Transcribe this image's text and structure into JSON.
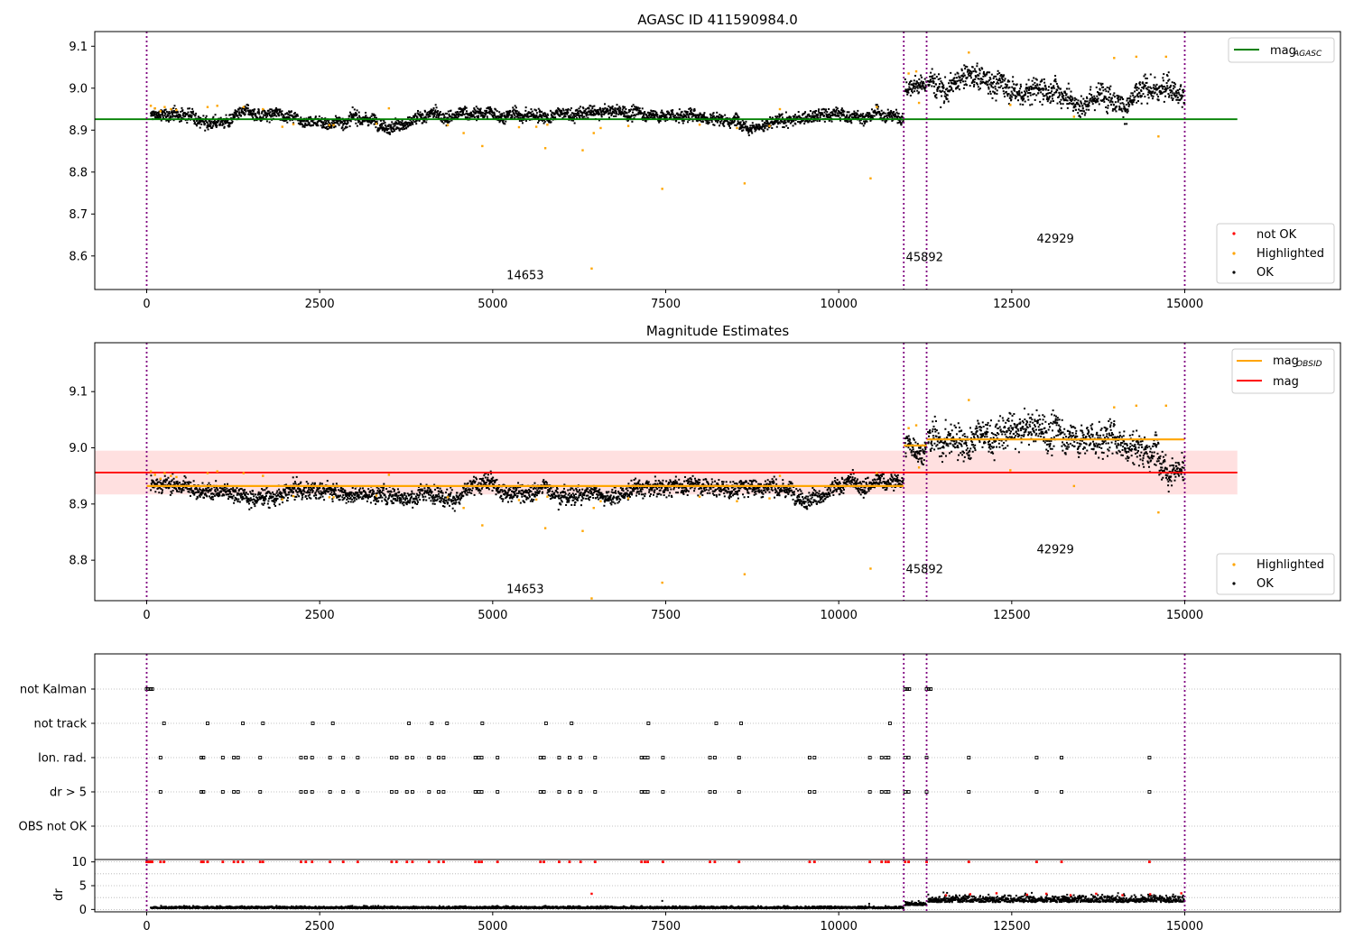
{
  "figure": {
    "title_top": "AGASC ID 411590984.0",
    "title_middle": "Magnitude Estimates"
  },
  "colors": {
    "ok": "#000000",
    "highlighted": "#ffa500",
    "not_ok": "#ff0000",
    "mag_agasc_line": "#008000",
    "mag_obsid_line": "#ffa500",
    "mag_line": "#ff0000",
    "mag_band": "#ffe0e0",
    "obs_boundary": "#800080",
    "grid": "#b0b0b0"
  },
  "chart_data": [
    {
      "id": "agasc_mag",
      "type": "scatter",
      "title": "AGASC ID 411590984.0",
      "xlabel": "",
      "ylabel": "",
      "xlim": [
        -750,
        17250
      ],
      "ylim": [
        8.52,
        9.135
      ],
      "x_ticks": [
        0,
        2500,
        5000,
        7500,
        10000,
        12500,
        15000
      ],
      "y_ticks": [
        8.6,
        8.7,
        8.8,
        8.9,
        9.0,
        9.1
      ],
      "grid": false,
      "legend_upper": {
        "placement": "upper right",
        "entries": [
          "mag_AGASC"
        ]
      },
      "legend_lower": {
        "placement": "lower right",
        "entries": [
          "not OK",
          "Highlighted",
          "OK"
        ]
      },
      "reference_lines": [
        {
          "name": "mag_AGASC",
          "y": 8.926,
          "x_range": [
            -750,
            15760
          ]
        }
      ],
      "obs_boundaries": [
        0,
        10940,
        11270,
        15000
      ],
      "obs_labels": [
        {
          "text": "14653",
          "x": 5470,
          "y": 8.545
        },
        {
          "text": "45892",
          "x": 11240,
          "y": 8.588
        },
        {
          "text": "42929",
          "x": 13130,
          "y": 8.632
        }
      ],
      "series": [
        {
          "name": "OK",
          "segments": [
            {
              "x_start": 60,
              "x_end": 10940,
              "level": 8.934,
              "spread": 0.009
            },
            {
              "x_start": 10960,
              "x_end": 11270,
              "level": 9.003,
              "spread": 0.012
            },
            {
              "x_start": 11290,
              "x_end": 15000,
              "level": 9.015,
              "spread": 0.018
            }
          ]
        },
        {
          "name": "Highlighted",
          "points": [
            [
              60,
              8.958
            ],
            [
              120,
              8.952
            ],
            [
              200,
              8.945
            ],
            [
              260,
              8.955
            ],
            [
              350,
              8.95
            ],
            [
              430,
              8.948
            ],
            [
              880,
              8.955
            ],
            [
              1020,
              8.958
            ],
            [
              1400,
              8.955
            ],
            [
              1680,
              8.95
            ],
            [
              1960,
              8.908
            ],
            [
              2120,
              8.914
            ],
            [
              2640,
              8.912
            ],
            [
              2700,
              8.912
            ],
            [
              3320,
              8.915
            ],
            [
              3500,
              8.952
            ],
            [
              4350,
              8.912
            ],
            [
              4580,
              8.893
            ],
            [
              4850,
              8.862
            ],
            [
              5380,
              8.907
            ],
            [
              5630,
              8.908
            ],
            [
              5760,
              8.857
            ],
            [
              5790,
              8.913
            ],
            [
              6300,
              8.852
            ],
            [
              6430,
              8.57
            ],
            [
              6460,
              8.893
            ],
            [
              6560,
              8.905
            ],
            [
              6960,
              8.91
            ],
            [
              7450,
              8.76
            ],
            [
              7990,
              8.913
            ],
            [
              8530,
              8.905
            ],
            [
              8640,
              8.773
            ],
            [
              9000,
              8.91
            ],
            [
              9150,
              8.95
            ],
            [
              10460,
              8.785
            ],
            [
              10550,
              8.955
            ],
            [
              11010,
              9.035
            ],
            [
              11120,
              9.04
            ],
            [
              11160,
              8.965
            ],
            [
              11880,
              9.085
            ],
            [
              12480,
              8.96
            ],
            [
              13400,
              8.932
            ],
            [
              13980,
              9.072
            ],
            [
              14300,
              9.075
            ],
            [
              14620,
              8.885
            ],
            [
              14730,
              9.075
            ]
          ]
        },
        {
          "name": "not OK",
          "points": []
        }
      ]
    },
    {
      "id": "magnitude_estimates",
      "type": "scatter",
      "title": "Magnitude Estimates",
      "xlabel": "",
      "ylabel": "",
      "xlim": [
        -750,
        17250
      ],
      "ylim": [
        8.728,
        9.187
      ],
      "x_ticks": [
        0,
        2500,
        5000,
        7500,
        10000,
        12500,
        15000
      ],
      "y_ticks": [
        8.8,
        8.9,
        9.0,
        9.1
      ],
      "grid": false,
      "legend_upper": {
        "placement": "upper right",
        "entries": [
          "mag_OBSID",
          "mag"
        ]
      },
      "legend_lower": {
        "placement": "lower right",
        "entries": [
          "Highlighted",
          "OK"
        ]
      },
      "reference_lines": [
        {
          "name": "mag",
          "y": 8.956,
          "x_range": [
            -750,
            15760
          ]
        }
      ],
      "mag_band": [
        8.917,
        8.995
      ],
      "obsid_lines": [
        {
          "x_range": [
            0,
            10940
          ],
          "y": 8.932
        },
        {
          "x_range": [
            10940,
            11270
          ],
          "y": 9.004
        },
        {
          "x_range": [
            11270,
            15000
          ],
          "y": 9.015
        }
      ],
      "obs_boundaries": [
        0,
        10940,
        11270,
        15000
      ],
      "obs_labels": [
        {
          "text": "14653",
          "x": 5470,
          "y": 8.742
        },
        {
          "text": "45892",
          "x": 11240,
          "y": 8.777
        },
        {
          "text": "42929",
          "x": 13130,
          "y": 8.812
        }
      ],
      "series": [
        {
          "name": "OK",
          "segments": [
            {
              "x_start": 60,
              "x_end": 10940,
              "level": 8.934,
              "spread": 0.009
            },
            {
              "x_start": 10960,
              "x_end": 11270,
              "level": 9.003,
              "spread": 0.012
            },
            {
              "x_start": 11290,
              "x_end": 15000,
              "level": 9.015,
              "spread": 0.018
            }
          ]
        },
        {
          "name": "Highlighted",
          "points": [
            [
              60,
              8.958
            ],
            [
              120,
              8.952
            ],
            [
              200,
              8.945
            ],
            [
              260,
              8.955
            ],
            [
              350,
              8.95
            ],
            [
              430,
              8.948
            ],
            [
              880,
              8.955
            ],
            [
              1020,
              8.958
            ],
            [
              1400,
              8.955
            ],
            [
              1680,
              8.95
            ],
            [
              1960,
              8.908
            ],
            [
              2120,
              8.914
            ],
            [
              2640,
              8.912
            ],
            [
              2700,
              8.912
            ],
            [
              3320,
              8.915
            ],
            [
              3500,
              8.952
            ],
            [
              4350,
              8.912
            ],
            [
              4580,
              8.893
            ],
            [
              4850,
              8.862
            ],
            [
              5380,
              8.907
            ],
            [
              5630,
              8.908
            ],
            [
              5760,
              8.857
            ],
            [
              5790,
              8.913
            ],
            [
              6300,
              8.852
            ],
            [
              6430,
              8.732
            ],
            [
              6460,
              8.893
            ],
            [
              6560,
              8.905
            ],
            [
              6960,
              8.91
            ],
            [
              7450,
              8.76
            ],
            [
              7990,
              8.913
            ],
            [
              8530,
              8.905
            ],
            [
              8640,
              8.775
            ],
            [
              9000,
              8.91
            ],
            [
              9150,
              8.95
            ],
            [
              10460,
              8.785
            ],
            [
              10550,
              8.955
            ],
            [
              11010,
              9.035
            ],
            [
              11120,
              9.04
            ],
            [
              11160,
              8.965
            ],
            [
              11880,
              9.085
            ],
            [
              12480,
              8.96
            ],
            [
              13400,
              8.932
            ],
            [
              13980,
              9.072
            ],
            [
              14300,
              9.075
            ],
            [
              14620,
              8.885
            ],
            [
              14730,
              9.075
            ]
          ]
        }
      ]
    },
    {
      "id": "flags",
      "type": "scatter",
      "xlabel": "",
      "ylabel": "",
      "xlim": [
        -750,
        17250
      ],
      "categories": [
        "not Kalman",
        "not track",
        "Ion. rad.",
        "dr > 5",
        "OBS not OK"
      ],
      "grid": true,
      "obs_boundaries": [
        0,
        10940,
        11270,
        15000
      ],
      "series": [
        {
          "name": "not Kalman",
          "x": [
            0,
            20,
            40,
            60,
            80,
            10960,
            10990,
            11020,
            11270,
            11300,
            11330
          ]
        },
        {
          "name": "not track",
          "x": [
            250,
            880,
            1390,
            1680,
            2400,
            2690,
            3790,
            4120,
            4340,
            4850,
            5770,
            6140,
            7250,
            8230,
            8590,
            10740
          ]
        },
        {
          "name": "Ion. rad.",
          "x": [
            200,
            790,
            820,
            1100,
            1260,
            1320,
            1640,
            2230,
            2300,
            2390,
            2650,
            2840,
            3050,
            3540,
            3610,
            3760,
            3840,
            4080,
            4220,
            4290,
            4750,
            4800,
            4840,
            5070,
            5690,
            5740,
            5960,
            6110,
            6270,
            6480,
            7150,
            7200,
            7240,
            7460,
            8140,
            8210,
            8560,
            9580,
            9650,
            10450,
            10620,
            10680,
            10720,
            10960,
            11010,
            11270,
            11880,
            12860,
            13220,
            14490
          ]
        },
        {
          "name": "dr > 5",
          "x": [
            200,
            790,
            820,
            1100,
            1260,
            1320,
            1640,
            2230,
            2300,
            2390,
            2650,
            2840,
            3050,
            3540,
            3610,
            3760,
            3840,
            4080,
            4220,
            4290,
            4750,
            4800,
            4840,
            5070,
            5690,
            5740,
            5960,
            6110,
            6270,
            6480,
            7150,
            7200,
            7240,
            7460,
            8140,
            8210,
            8560,
            9580,
            9650,
            10450,
            10620,
            10680,
            10720,
            10960,
            11010,
            11270,
            11880,
            12860,
            13220,
            14490
          ]
        },
        {
          "name": "OBS not OK",
          "x": []
        }
      ]
    },
    {
      "id": "dr",
      "type": "scatter",
      "xlabel": "",
      "ylabel": "dr",
      "xlim": [
        -750,
        17250
      ],
      "ylim": [
        -0.5,
        10.5
      ],
      "x_ticks": [
        0,
        2500,
        5000,
        7500,
        10000,
        12500,
        15000
      ],
      "y_ticks": [
        0,
        5,
        10
      ],
      "grid": true,
      "obs_boundaries": [
        0,
        10940,
        11270,
        15000
      ],
      "series": [
        {
          "name": "OK",
          "segments": [
            {
              "x_start": 60,
              "x_end": 10940,
              "level": 0.3,
              "spread": 0.25
            },
            {
              "x_start": 10960,
              "x_end": 11270,
              "level": 1.0,
              "spread": 0.4
            },
            {
              "x_start": 11290,
              "x_end": 15000,
              "level": 1.8,
              "spread": 0.9
            }
          ],
          "points": [
            [
              7450,
              1.8
            ],
            [
              10440,
              1.2
            ]
          ]
        },
        {
          "name": "not OK",
          "points_at_clip": 10,
          "x": [
            0,
            20,
            40,
            60,
            80,
            200,
            250,
            790,
            820,
            880,
            1100,
            1260,
            1320,
            1390,
            1640,
            1680,
            2230,
            2300,
            2390,
            2650,
            2840,
            3050,
            3540,
            3610,
            3760,
            3840,
            4080,
            4220,
            4290,
            4750,
            4800,
            4840,
            5070,
            5690,
            5740,
            5960,
            6110,
            6270,
            6480,
            7150,
            7200,
            7240,
            7460,
            8140,
            8210,
            8560,
            9580,
            9650,
            10450,
            10620,
            10680,
            10720,
            10960,
            11010,
            11270,
            11880,
            12860,
            13220,
            14490
          ],
          "extra_points": [
            [
              6430,
              3.3
            ],
            [
              11550,
              3.0
            ],
            [
              11900,
              3.2
            ],
            [
              12280,
              3.4
            ],
            [
              12720,
              3.1
            ],
            [
              13000,
              3.3
            ],
            [
              13350,
              3.0
            ],
            [
              13720,
              3.3
            ],
            [
              14100,
              3.0
            ],
            [
              14500,
              3.2
            ],
            [
              14950,
              3.4
            ]
          ]
        }
      ]
    }
  ],
  "legends": {
    "top": {
      "upper": [
        {
          "prefix": "mag",
          "sub": "AGASC"
        }
      ],
      "lower": [
        "not OK",
        "Highlighted",
        "OK"
      ]
    },
    "middle": {
      "upper": [
        {
          "prefix": "mag",
          "sub": "OBSID"
        },
        {
          "prefix": "mag",
          "sub": ""
        }
      ],
      "lower": [
        "Highlighted",
        "OK"
      ]
    }
  }
}
